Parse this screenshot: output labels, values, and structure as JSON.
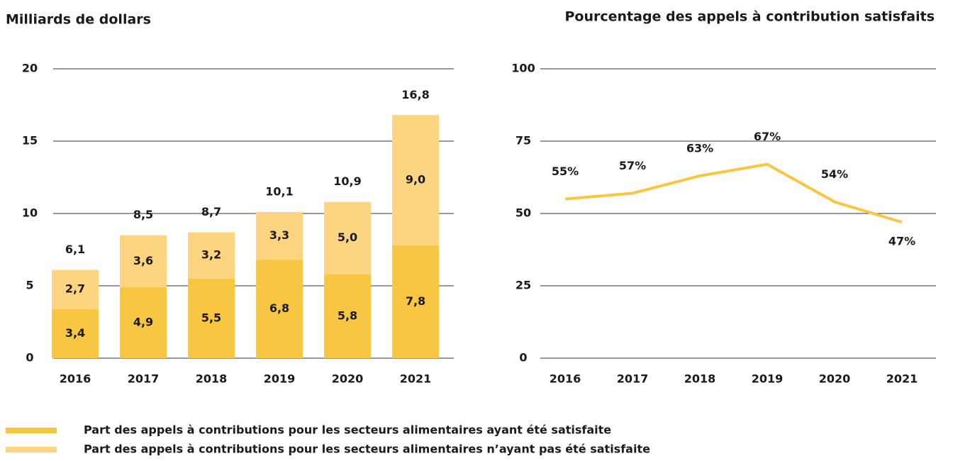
{
  "chart_data": [
    {
      "type": "stacked_bar",
      "title": "Milliards de dollars",
      "categories": [
        "2016",
        "2017",
        "2018",
        "2019",
        "2020",
        "2021"
      ],
      "series": [
        {
          "name": "Part des appels à contributions pour les secteurs alimentaires ayant été satisfaite",
          "color": "#f9c642",
          "values": [
            3.4,
            4.9,
            5.5,
            6.8,
            5.8,
            7.8
          ],
          "value_labels": [
            "3,4",
            "4,9",
            "5,5",
            "6,8",
            "5,8",
            "7,8"
          ]
        },
        {
          "name": "Part des appels à contributions pour les secteurs alimentaires n’ayant pas été satisfaite",
          "color": "#fdd581",
          "values": [
            2.7,
            3.6,
            3.2,
            3.3,
            5.0,
            9.0
          ],
          "value_labels": [
            "2,7",
            "3,6",
            "3,2",
            "3,3",
            "5,0",
            "9,0"
          ]
        }
      ],
      "totals": [
        6.1,
        8.5,
        8.7,
        10.1,
        10.9,
        16.8
      ],
      "total_labels": [
        "6,1",
        "8,5",
        "8,7",
        "10,1",
        "10,9",
        "16,8"
      ],
      "ylim": [
        0,
        20
      ],
      "yticks": [
        0,
        5,
        10,
        15,
        20
      ],
      "grid": true
    },
    {
      "type": "line",
      "title": "Pourcentage des appels à contribution satisfaits",
      "categories": [
        "2016",
        "2017",
        "2018",
        "2019",
        "2020",
        "2021"
      ],
      "values": [
        55,
        57,
        63,
        67,
        54,
        47
      ],
      "value_labels": [
        "55%",
        "57%",
        "63%",
        "67%",
        "54%",
        "47%"
      ],
      "color": "#f9c642",
      "ylim": [
        0,
        100
      ],
      "yticks": [
        0,
        25,
        50,
        75,
        100
      ],
      "grid": true
    }
  ]
}
